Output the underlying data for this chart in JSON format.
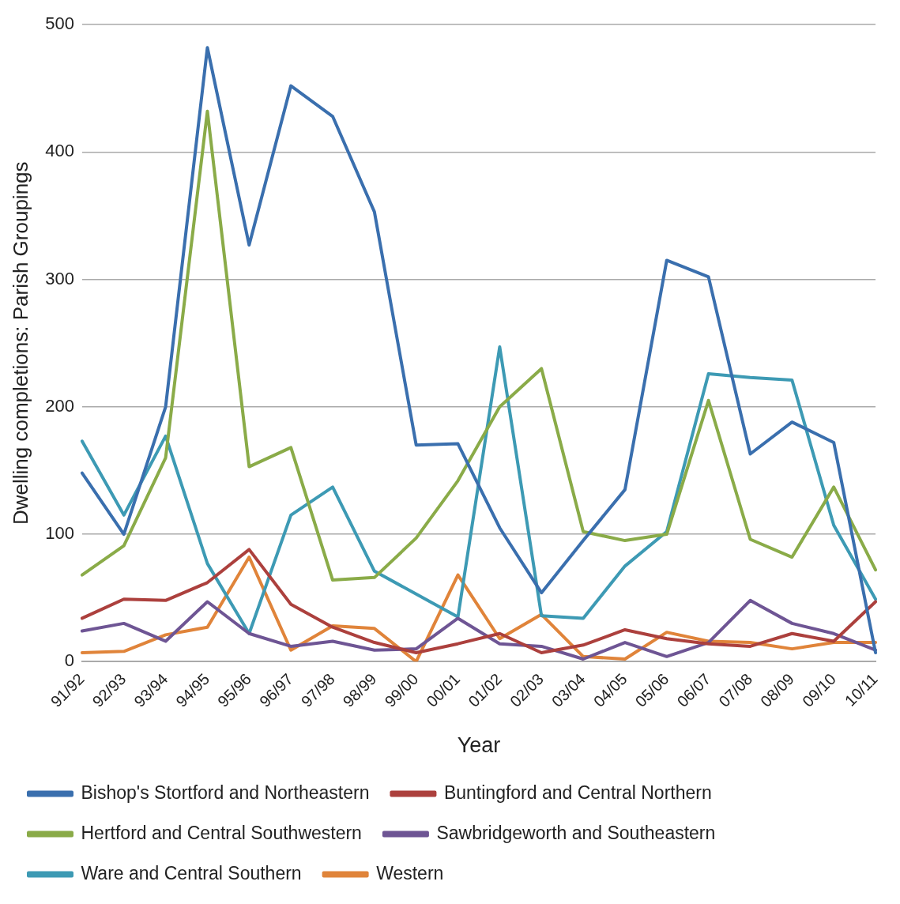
{
  "chart_data": {
    "type": "line",
    "xlabel": "Year",
    "ylabel": "Dwelling completions: Parish Groupings",
    "categories": [
      "91/92",
      "92/93",
      "93/94",
      "94/95",
      "95/96",
      "96/97",
      "97/98",
      "98/99",
      "99/00",
      "00/01",
      "01/02",
      "02/03",
      "03/04",
      "04/05",
      "05/06",
      "06/07",
      "07/08",
      "08/09",
      "09/10",
      "10/11"
    ],
    "ylim": [
      0,
      500
    ],
    "yticks": [
      0,
      100,
      200,
      300,
      400,
      500
    ],
    "grid": "y",
    "legend": "bottom",
    "marker": "none",
    "line_style": "solid",
    "series": [
      {
        "name": "Bishop's Stortford and Northeastern",
        "color": "#3a6fae",
        "values": [
          148,
          100,
          200,
          482,
          327,
          452,
          428,
          353,
          170,
          171,
          105,
          54,
          95,
          135,
          315,
          302,
          163,
          188,
          172,
          7
        ]
      },
      {
        "name": "Buntingford and Central Northern",
        "color": "#ac403d",
        "values": [
          34,
          49,
          48,
          62,
          88,
          45,
          27,
          15,
          7,
          14,
          22,
          7,
          13,
          25,
          18,
          14,
          12,
          22,
          16,
          47
        ]
      },
      {
        "name": "Hertford and Central Southwestern",
        "color": "#8aab48",
        "values": [
          68,
          91,
          160,
          432,
          153,
          168,
          64,
          66,
          97,
          142,
          200,
          230,
          102,
          95,
          100,
          205,
          96,
          82,
          137,
          72
        ]
      },
      {
        "name": "Sawbridgeworth and Southeastern",
        "color": "#6e5594",
        "values": [
          24,
          30,
          16,
          47,
          22,
          12,
          16,
          9,
          10,
          34,
          14,
          12,
          2,
          15,
          4,
          15,
          48,
          30,
          22,
          9
        ]
      },
      {
        "name": "Ware and Central Southern",
        "color": "#3d9ab4",
        "values": [
          173,
          115,
          177,
          77,
          22,
          115,
          137,
          71,
          53,
          35,
          247,
          36,
          34,
          75,
          102,
          226,
          223,
          221,
          107,
          49
        ]
      },
      {
        "name": "Western",
        "color": "#e0843a",
        "values": [
          7,
          8,
          21,
          27,
          82,
          9,
          28,
          26,
          0,
          68,
          18,
          37,
          4,
          2,
          23,
          16,
          15,
          10,
          15,
          15
        ]
      }
    ]
  }
}
